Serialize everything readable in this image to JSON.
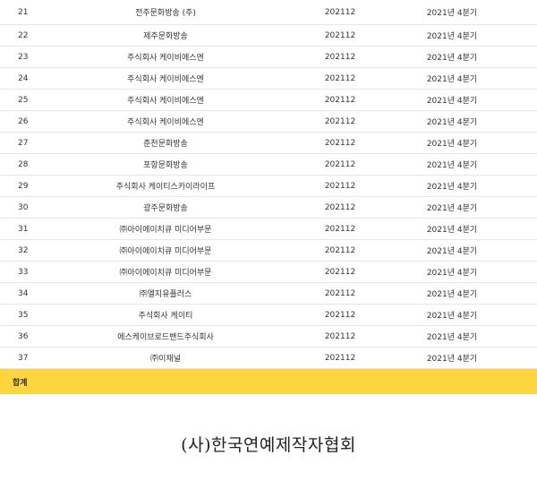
{
  "rows": [
    {
      "no": "21",
      "name": "전주문화방송 (주)",
      "period": "202112",
      "quarter": "2021년 4분기"
    },
    {
      "no": "22",
      "name": "제주문화방송",
      "period": "202112",
      "quarter": "2021년 4분기"
    },
    {
      "no": "23",
      "name": "주식회사 케이비에스엔",
      "period": "202112",
      "quarter": "2021년 4분기"
    },
    {
      "no": "24",
      "name": "주식회사 케이비에스엔",
      "period": "202112",
      "quarter": "2021년 4분기"
    },
    {
      "no": "25",
      "name": "주식회사 케이비에스엔",
      "period": "202112",
      "quarter": "2021년 4분기"
    },
    {
      "no": "26",
      "name": "주식회사 케이비에스엔",
      "period": "202112",
      "quarter": "2021년 4분기"
    },
    {
      "no": "27",
      "name": "춘천문화방송",
      "period": "202112",
      "quarter": "2021년 4분기"
    },
    {
      "no": "28",
      "name": "포항문화방송",
      "period": "202112",
      "quarter": "2021년 4분기"
    },
    {
      "no": "29",
      "name": "주식회사 케이티스카이라이프",
      "period": "202112",
      "quarter": "2021년 4분기"
    },
    {
      "no": "30",
      "name": "광주문화방송",
      "period": "202112",
      "quarter": "2021년 4분기"
    },
    {
      "no": "31",
      "name": "㈜아이에이치큐 미디어부문",
      "period": "202112",
      "quarter": "2021년 4분기"
    },
    {
      "no": "32",
      "name": "㈜아이에이치큐 미디어부문",
      "period": "202112",
      "quarter": "2021년 4분기"
    },
    {
      "no": "33",
      "name": "㈜아이에이치큐 미디어부문",
      "period": "202112",
      "quarter": "2021년 4분기"
    },
    {
      "no": "34",
      "name": "㈜엘지유플러스",
      "period": "202112",
      "quarter": "2021년 4분기"
    },
    {
      "no": "35",
      "name": "주식회사 케이티",
      "period": "202112",
      "quarter": "2021년 4분기"
    },
    {
      "no": "36",
      "name": "에스케이브로드밴드주식회사",
      "period": "202112",
      "quarter": "2021년 4분기"
    },
    {
      "no": "37",
      "name": "㈜이채널",
      "period": "202112",
      "quarter": "2021년 4분기"
    }
  ],
  "total_label": "합계",
  "footer_text": "(사)한국연예제작자협회",
  "colors": {
    "total_bg": "#fcd53f",
    "row_border": "#e6e6e6"
  }
}
